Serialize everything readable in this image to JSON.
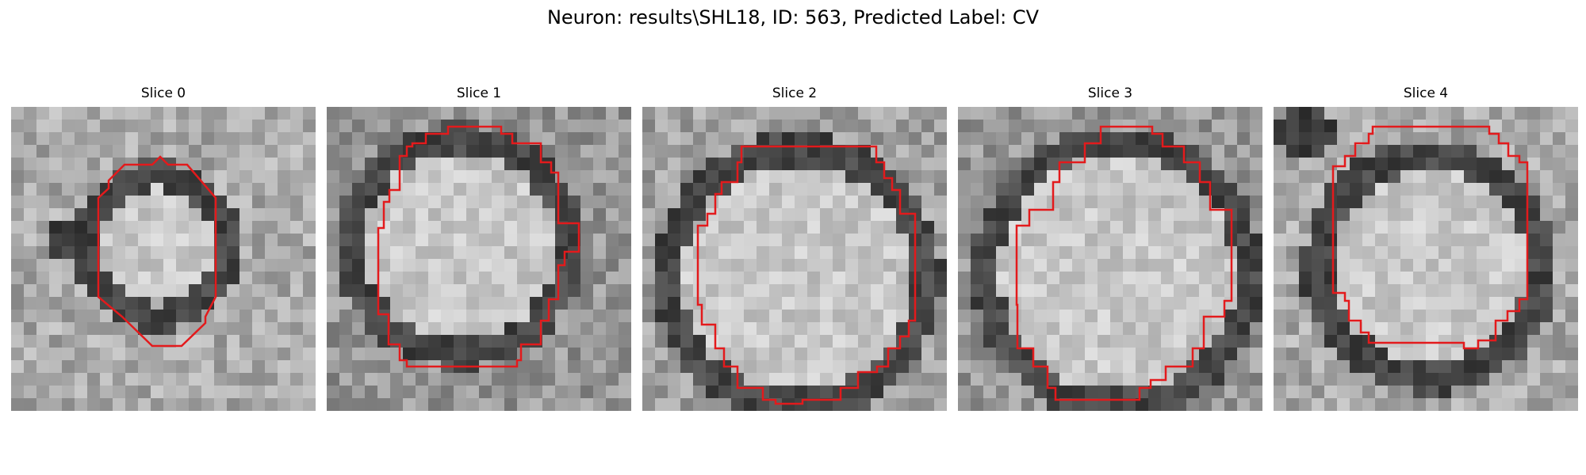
{
  "figure": {
    "title": "Neuron: results\\SHL18, ID: 563, Predicted Label: CV"
  },
  "colors": {
    "contour": "#e31a1c",
    "background": "#ffffff"
  },
  "panels": [
    {
      "title": "Slice 0"
    },
    {
      "title": "Slice 1"
    },
    {
      "title": "Slice 2"
    },
    {
      "title": "Slice 3"
    },
    {
      "title": "Slice 4"
    }
  ]
}
